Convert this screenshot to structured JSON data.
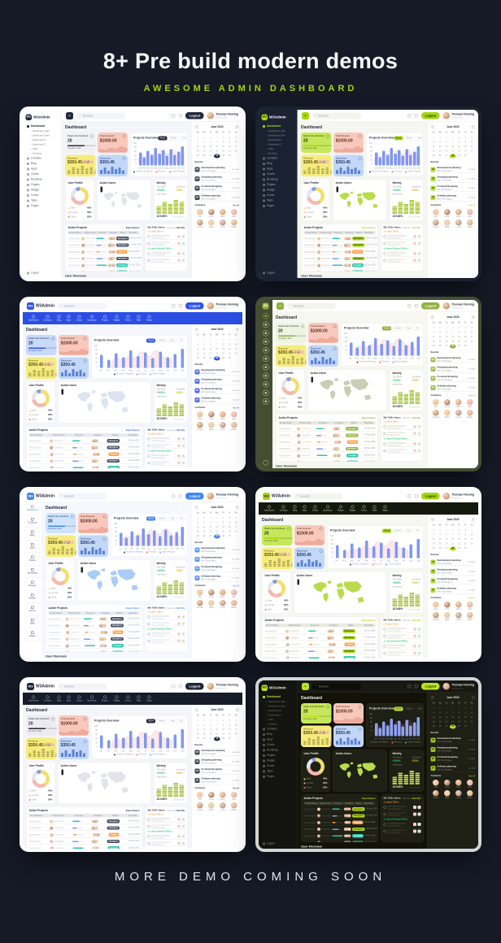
{
  "page": {
    "title": "8+ Pre build modern demos",
    "subtitle": "AWESOME ADMIN DASHBOARD",
    "footer": "MORE DEMO COMING SOON",
    "colors": {
      "background": "#151a26",
      "accent_green": "#a4d411",
      "title_text": "#f5f7fb"
    }
  },
  "common": {
    "logo_mark": "W3",
    "logo_text": "W3Admin",
    "search_placeholder": "Search",
    "logout_label": "Logout",
    "user_name": "Thomas Fleming",
    "heading": "Dashboard",
    "nav_items": [
      "Dashboard",
      "Contacts",
      "Blog",
      "Apps",
      "Charts",
      "Bootstrap",
      "Plugins",
      "Widget",
      "Forms",
      "Table",
      "Pages"
    ],
    "sidebar_sub_items": [
      "Dashboard Light",
      "Dashboard Dark",
      "Dashboard 2",
      "Dashboard 3",
      "CMS",
      "Analytics"
    ],
    "cards": [
      {
        "label": "Tasks Not Finished",
        "value": "20",
        "sub": "Complete Task"
      },
      {
        "label": "Total Deposit",
        "value": "$1000.00"
      },
      {
        "label": "Revenue",
        "value": "$350.45"
      },
      {
        "label": "Expenses",
        "value": "$350.45"
      }
    ],
    "chart_data": {
      "type": "bar",
      "title": "Projects Overview",
      "filters": [
        "Week",
        "Month",
        "Year",
        "All"
      ],
      "categories": [
        "Jan",
        "Feb",
        "Mar",
        "Apr",
        "May",
        "Jun",
        "Jul",
        "Aug",
        "Sep",
        "Oct",
        "Nov",
        "Dec"
      ],
      "values": [
        55,
        35,
        62,
        45,
        75,
        50,
        66,
        42,
        70,
        46,
        60,
        82
      ],
      "ylim": [
        0,
        100
      ],
      "yticks": [
        0,
        20,
        40,
        60,
        80,
        100
      ],
      "legend": [
        "Number of Projects",
        "Revenue",
        "Active Projects"
      ]
    },
    "donut": {
      "title": "User Profile",
      "segments": [
        {
          "label": "Male",
          "value": "45%"
        },
        {
          "label": "Female",
          "value": "35%"
        },
        {
          "label": "Other",
          "value": "20%"
        }
      ]
    },
    "map": {
      "title": "Active Users"
    },
    "weekly": {
      "title": "Weekly",
      "stats": [
        {
          "label": "This Week",
          "value": "+200%"
        },
        {
          "label": "Last Week",
          "value": "+33%"
        }
      ],
      "impression_label": "Impression",
      "impression_value": "15.545%",
      "stack_columns": [
        4,
        6,
        5,
        7,
        6
      ]
    },
    "projects": {
      "title": "Active Projects",
      "action": "Export Report",
      "columns": [
        "Project Name",
        "Project Lead",
        "Progress",
        "Assignee",
        "Status",
        "Due Date"
      ],
      "rows": [
        {
          "status": "Inprogress",
          "chip": "primary",
          "due": "28 Sep 2023",
          "progress": 70
        },
        {
          "status": "Inprogress",
          "chip": "primary",
          "due": "24 Sep 2023",
          "progress": 45
        },
        {
          "status": "Pending",
          "chip": "orange",
          "due": "26 Sep 2023",
          "progress": 30
        },
        {
          "status": "Inprogress",
          "chip": "primary",
          "due": "28 Sep 2023",
          "progress": 60
        },
        {
          "status": "Complete",
          "chip": "teal",
          "due": "30 Dec 2023",
          "progress": 100
        },
        {
          "status": "Complete",
          "chip": "teal",
          "due": "28 Sep 2023",
          "progress": 100
        }
      ],
      "pagination": [
        "1",
        "2",
        "3"
      ]
    },
    "todo": {
      "title": "My ToDo Items",
      "view_all": "View All",
      "add": "+ Add ToDo",
      "groups": [
        {
          "label": "Latest ToDo's",
          "color": "#ff9f43"
        },
        {
          "label": "Latest Finished ToDo's",
          "color": "#28c76f"
        }
      ]
    },
    "calendar": {
      "month": "June 2023",
      "days": [
        "Su",
        "Mo",
        "Tu",
        "We",
        "Th",
        "Fr",
        "Sa"
      ],
      "start_offset": 4,
      "num_days": 30,
      "prev_month_last_day": 31,
      "highlight": 28
    },
    "events": {
      "title": "Events",
      "items": [
        {
          "title": "Development planning",
          "sub": "with Technologies",
          "time": "10:00 AM"
        },
        {
          "title": "Designing planning",
          "sub": "with Technologies",
          "time": "10:15 AM"
        },
        {
          "title": "Frontend Designing",
          "sub": "with Technologies",
          "time": "10:45 AM"
        },
        {
          "title": "Software planning",
          "sub": "with Technologies",
          "time": "11:00 AM"
        }
      ]
    },
    "contacts": {
      "title": "Contacts",
      "view_all": "View All",
      "names": [
        "Tony",
        "Lucas",
        "Oliver",
        "Sara",
        "Donald",
        "Elijah",
        "Lucas",
        "Rafael"
      ]
    },
    "reviews_title": "User Reviews"
  },
  "demos": [
    {
      "name": "light-sidebar",
      "layout": "sidebar",
      "theme": {
        "frame": "#ffffff",
        "accent": "#232a3b",
        "accentText": "#ffffff",
        "sbBg": "#ffffff",
        "sbText": "#595f74",
        "sbHead": "#262a3c",
        "topbarBg": "#ffffff",
        "navBg": "",
        "navText": "",
        "contentBg": "#f4f5f9",
        "panelBg": "#ffffff",
        "panelBorder": "#e9eaef",
        "text": "#262a3c",
        "mute": "#9aa0b4",
        "skeleton": "#e8e9ef",
        "map": "#e2e4eb",
        "card1Bg": "#f1f1f4",
        "card1Text": "#262a3c",
        "chip": "#434b5f",
        "chipText": "#ffffff",
        "searchBg": "#f3f4f8",
        "bar": "#7d98f0"
      }
    },
    {
      "name": "dark-sidebar-lime",
      "layout": "sidebar",
      "theme": {
        "frame": "#1a2130",
        "accent": "#a4d70f",
        "accentText": "#222b00",
        "sbBg": "#1a2130",
        "sbText": "#9aa3b8",
        "sbHead": "#ffffff",
        "topbarBg": "#ffffff",
        "navBg": "",
        "navText": "",
        "contentBg": "#f5f6f1",
        "panelBg": "#ffffff",
        "panelBorder": "#e9eae2",
        "text": "#262a3c",
        "mute": "#9aa0b4",
        "skeleton": "#e9eae1",
        "map": "#b9dc4a",
        "card1Bg": "#c6e75b",
        "card1Text": "#273300",
        "chip": "#a4d70f",
        "chipText": "#223000",
        "searchBg": "#f3f4ee",
        "bar": "#7d98f0"
      }
    },
    {
      "name": "horizontal-blue",
      "layout": "topnav",
      "theme": {
        "frame": "#ffffff",
        "accent": "#2f55e8",
        "accentText": "#ffffff",
        "sbBg": "",
        "sbText": "",
        "sbHead": "",
        "topbarBg": "#ffffff",
        "navBg": "#2b4ee3",
        "navText": "#dfe6ff",
        "contentBg": "#f4f6fc",
        "panelBg": "#ffffff",
        "panelBorder": "#e7eaf4",
        "text": "#262a3c",
        "mute": "#9aa0b4",
        "skeleton": "#e7eaf3",
        "map": "#dde3f2",
        "card1Bg": "#c9daf8",
        "card1Text": "#1d2a4d",
        "chip": "#434b5f",
        "chipText": "#ffffff",
        "searchBg": "#f3f5fb",
        "bar": "#7d98f0"
      }
    },
    {
      "name": "icon-sidebar-olive",
      "layout": "sidebar-icon",
      "theme": {
        "frame": "#474d31",
        "accent": "#8fb33c",
        "accentText": "#ffffff",
        "sbBg": "#474d31",
        "sbText": "#c9cfb2",
        "sbHead": "#ffffff",
        "topbarBg": "#ffffff",
        "navBg": "",
        "navText": "",
        "contentBg": "#f7f7f1",
        "panelBg": "#ffffff",
        "panelBorder": "#e8e9dd",
        "text": "#2c2f24",
        "mute": "#9aa08e",
        "skeleton": "#e9eadf",
        "map": "#c8cfb2",
        "card1Bg": "#eef3e2",
        "card1Text": "#2c2f24",
        "chip": "#8fb33c",
        "chipText": "#ffffff",
        "searchBg": "#f4f5ee",
        "bar": "#7d98f0"
      }
    },
    {
      "name": "compact-sidebar-blue",
      "layout": "sidebar-label",
      "theme": {
        "frame": "#ffffff",
        "accent": "#4285f4",
        "accentText": "#ffffff",
        "sbBg": "#ffffff",
        "sbText": "#4a4f63",
        "sbHead": "#262a3c",
        "topbarBg": "#ffffff",
        "navBg": "",
        "navText": "",
        "contentBg": "#f5f8fe",
        "panelBg": "#ffffff",
        "panelBorder": "#e7ecf6",
        "text": "#262a3c",
        "mute": "#9aa0b4",
        "skeleton": "#e7ecf5",
        "map": "#aacdf7",
        "card1Bg": "#cfe3fc",
        "card1Text": "#173264",
        "chip": "#434b5f",
        "chipText": "#ffffff",
        "searchBg": "#f3f6fd",
        "bar": "#7d98f0"
      }
    },
    {
      "name": "horizontal-dark-lime",
      "layout": "topnav",
      "theme": {
        "frame": "#ffffff",
        "accent": "#a4d70f",
        "accentText": "#222b00",
        "sbBg": "",
        "sbText": "",
        "sbHead": "",
        "topbarBg": "#ffffff",
        "navBg": "#15180c",
        "navText": "#c8cfae",
        "contentBg": "#f6f7f0",
        "panelBg": "#ffffff",
        "panelBorder": "#e8e9dd",
        "text": "#262a3c",
        "mute": "#9aa0b4",
        "skeleton": "#e9eae0",
        "map": "#b9dc4a",
        "card1Bg": "#c6e75b",
        "card1Text": "#273300",
        "chip": "#a4d70f",
        "chipText": "#223000",
        "searchBg": "#f4f5ee",
        "bar": "#7d98f0"
      }
    },
    {
      "name": "horizontal-dark-navy",
      "layout": "topnav",
      "theme": {
        "frame": "#ffffff",
        "accent": "#20263a",
        "accentText": "#ffffff",
        "sbBg": "",
        "sbText": "",
        "sbHead": "",
        "topbarBg": "#ffffff",
        "navBg": "#171c2b",
        "navText": "#a7aec3",
        "contentBg": "#f4f5f9",
        "panelBg": "#ffffff",
        "panelBorder": "#e9eaef",
        "text": "#262a3c",
        "mute": "#9aa0b4",
        "skeleton": "#e8e9ef",
        "map": "#e2e4eb",
        "card1Bg": "#ececf0",
        "card1Text": "#262a3c",
        "chip": "#434b5f",
        "chipText": "#ffffff",
        "searchBg": "#f3f4f8",
        "bar": "#7d98f0"
      }
    },
    {
      "name": "full-dark-lime",
      "layout": "sidebar",
      "theme": {
        "frame": "#d3d4d6",
        "accent": "#b8e320",
        "accentText": "#1c2400",
        "sbBg": "#131310",
        "sbText": "#8d9079",
        "sbHead": "#eef0dd",
        "topbarBg": "#191913",
        "navBg": "",
        "navText": "",
        "contentBg": "#121209",
        "panelBg": "#1e1f15",
        "panelBorder": "#2d2e1f",
        "text": "#ecefdd",
        "mute": "#83866f",
        "skeleton": "#313323",
        "map": "#b9dc4a",
        "card1Bg": "#c6e75b",
        "card1Text": "#273300",
        "chip": "#b8e320",
        "chipText": "#1c2400",
        "searchBg": "#0d0d07",
        "bar": "#8ca3f5"
      }
    }
  ]
}
